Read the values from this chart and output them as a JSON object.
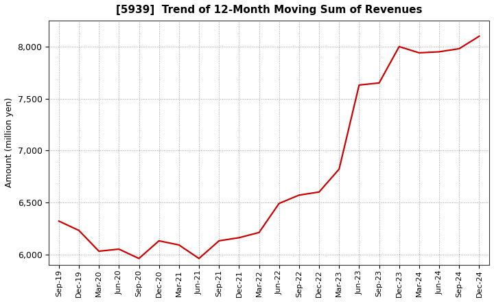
{
  "title": "[5939]  Trend of 12-Month Moving Sum of Revenues",
  "ylabel": "Amount (million yen)",
  "line_color": "#cc0000",
  "background_color": "#ffffff",
  "grid_color": "#999999",
  "ylim": [
    5900,
    8250
  ],
  "yticks": [
    6000,
    6500,
    7000,
    7500,
    8000
  ],
  "x_labels": [
    "Sep-19",
    "Dec-19",
    "Mar-20",
    "Jun-20",
    "Sep-20",
    "Dec-20",
    "Mar-21",
    "Jun-21",
    "Sep-21",
    "Dec-21",
    "Mar-22",
    "Jun-22",
    "Sep-22",
    "Dec-22",
    "Mar-23",
    "Jun-23",
    "Sep-23",
    "Dec-23",
    "Mar-24",
    "Jun-24",
    "Sep-24",
    "Dec-24"
  ],
  "values": [
    6320,
    6230,
    6030,
    6050,
    5960,
    6130,
    6090,
    5960,
    6130,
    6160,
    6210,
    6490,
    6570,
    6600,
    6820,
    7630,
    7650,
    8000,
    7940,
    7950,
    7980,
    8100
  ]
}
